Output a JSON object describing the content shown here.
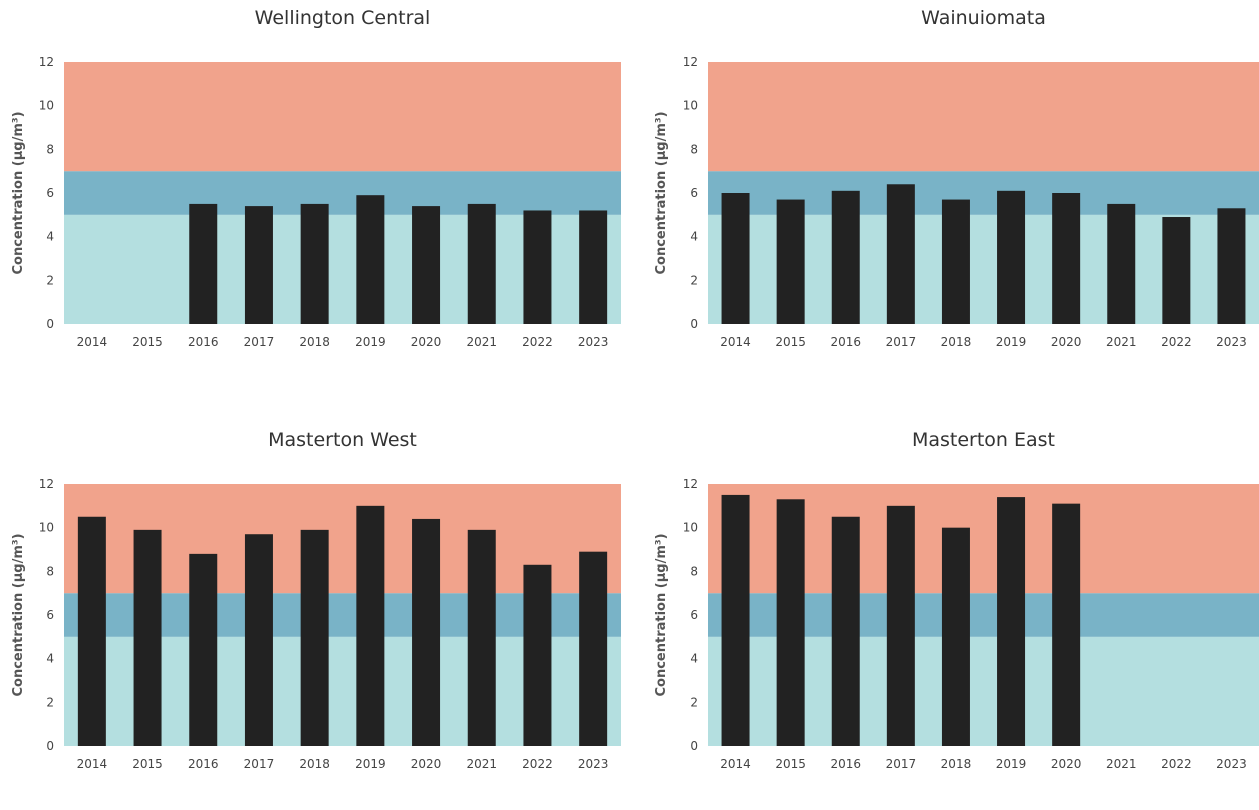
{
  "chart_data": [
    {
      "type": "bar",
      "title": "Wellington Central",
      "ylabel": "Concentration (µg/m³)",
      "categories": [
        "2014",
        "2015",
        "2016",
        "2017",
        "2018",
        "2019",
        "2020",
        "2021",
        "2022",
        "2023"
      ],
      "values": [
        null,
        null,
        5.5,
        5.4,
        5.5,
        5.9,
        5.4,
        5.5,
        5.2,
        5.2
      ],
      "ylim": [
        0,
        12
      ],
      "yticks": [
        0,
        2,
        4,
        6,
        8,
        10,
        12
      ],
      "bands": [
        {
          "from": 0,
          "to": 5,
          "color": "#b4dfe0"
        },
        {
          "from": 5,
          "to": 7,
          "color": "#79b3c7"
        },
        {
          "from": 7,
          "to": 12,
          "color": "#f1a38c"
        }
      ],
      "bar_color": "#222222"
    },
    {
      "type": "bar",
      "title": "Wainuiomata",
      "ylabel": "Concentration (µg/m³)",
      "categories": [
        "2014",
        "2015",
        "2016",
        "2017",
        "2018",
        "2019",
        "2020",
        "2021",
        "2022",
        "2023"
      ],
      "values": [
        6.0,
        5.7,
        6.1,
        6.4,
        5.7,
        6.1,
        6.0,
        5.5,
        4.9,
        5.3
      ],
      "ylim": [
        0,
        12
      ],
      "yticks": [
        0,
        2,
        4,
        6,
        8,
        10,
        12
      ],
      "bands": [
        {
          "from": 0,
          "to": 5,
          "color": "#b4dfe0"
        },
        {
          "from": 5,
          "to": 7,
          "color": "#79b3c7"
        },
        {
          "from": 7,
          "to": 12,
          "color": "#f1a38c"
        }
      ],
      "bar_color": "#222222"
    },
    {
      "type": "bar",
      "title": "Masterton West",
      "ylabel": "Concentration (µg/m³)",
      "categories": [
        "2014",
        "2015",
        "2016",
        "2017",
        "2018",
        "2019",
        "2020",
        "2021",
        "2022",
        "2023"
      ],
      "values": [
        10.5,
        9.9,
        8.8,
        9.7,
        9.9,
        11.0,
        10.4,
        9.9,
        8.3,
        8.9
      ],
      "ylim": [
        0,
        12
      ],
      "yticks": [
        0,
        2,
        4,
        6,
        8,
        10,
        12
      ],
      "bands": [
        {
          "from": 0,
          "to": 5,
          "color": "#b4dfe0"
        },
        {
          "from": 5,
          "to": 7,
          "color": "#79b3c7"
        },
        {
          "from": 7,
          "to": 12,
          "color": "#f1a38c"
        }
      ],
      "bar_color": "#222222"
    },
    {
      "type": "bar",
      "title": "Masterton East",
      "ylabel": "Concentration (µg/m³)",
      "categories": [
        "2014",
        "2015",
        "2016",
        "2017",
        "2018",
        "2019",
        "2020",
        "2021",
        "2022",
        "2023"
      ],
      "values": [
        11.5,
        11.3,
        10.5,
        11.0,
        10.0,
        11.4,
        11.1,
        null,
        null,
        null
      ],
      "ylim": [
        0,
        12
      ],
      "yticks": [
        0,
        2,
        4,
        6,
        8,
        10,
        12
      ],
      "bands": [
        {
          "from": 0,
          "to": 5,
          "color": "#b4dfe0"
        },
        {
          "from": 5,
          "to": 7,
          "color": "#79b3c7"
        },
        {
          "from": 7,
          "to": 12,
          "color": "#f1a38c"
        }
      ],
      "bar_color": "#222222"
    }
  ]
}
